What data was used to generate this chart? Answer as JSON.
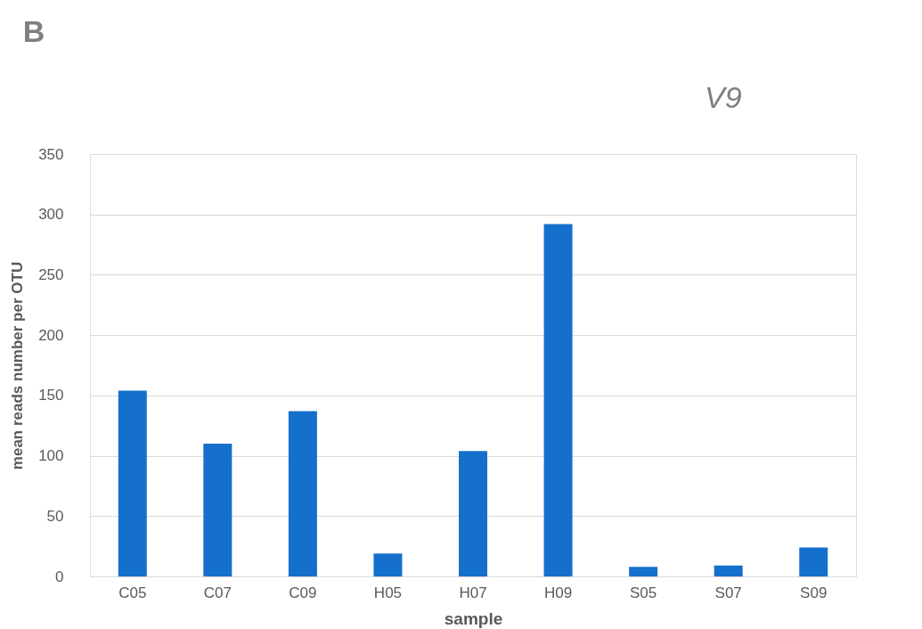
{
  "chart_data": {
    "type": "bar",
    "title": "B",
    "annotations": [
      "V9"
    ],
    "categories": [
      "C05",
      "C07",
      "C09",
      "H05",
      "H07",
      "H09",
      "S05",
      "S07",
      "S09"
    ],
    "values": [
      154,
      110,
      137,
      19,
      104,
      292,
      8,
      9,
      24
    ],
    "color": "#1570cc",
    "xlabel": "sample",
    "ylabel": "mean reads number per OTU",
    "ylim": [
      0,
      350
    ],
    "yticks": [
      0,
      50,
      100,
      150,
      200,
      250,
      300,
      350
    ],
    "grid": "y"
  }
}
